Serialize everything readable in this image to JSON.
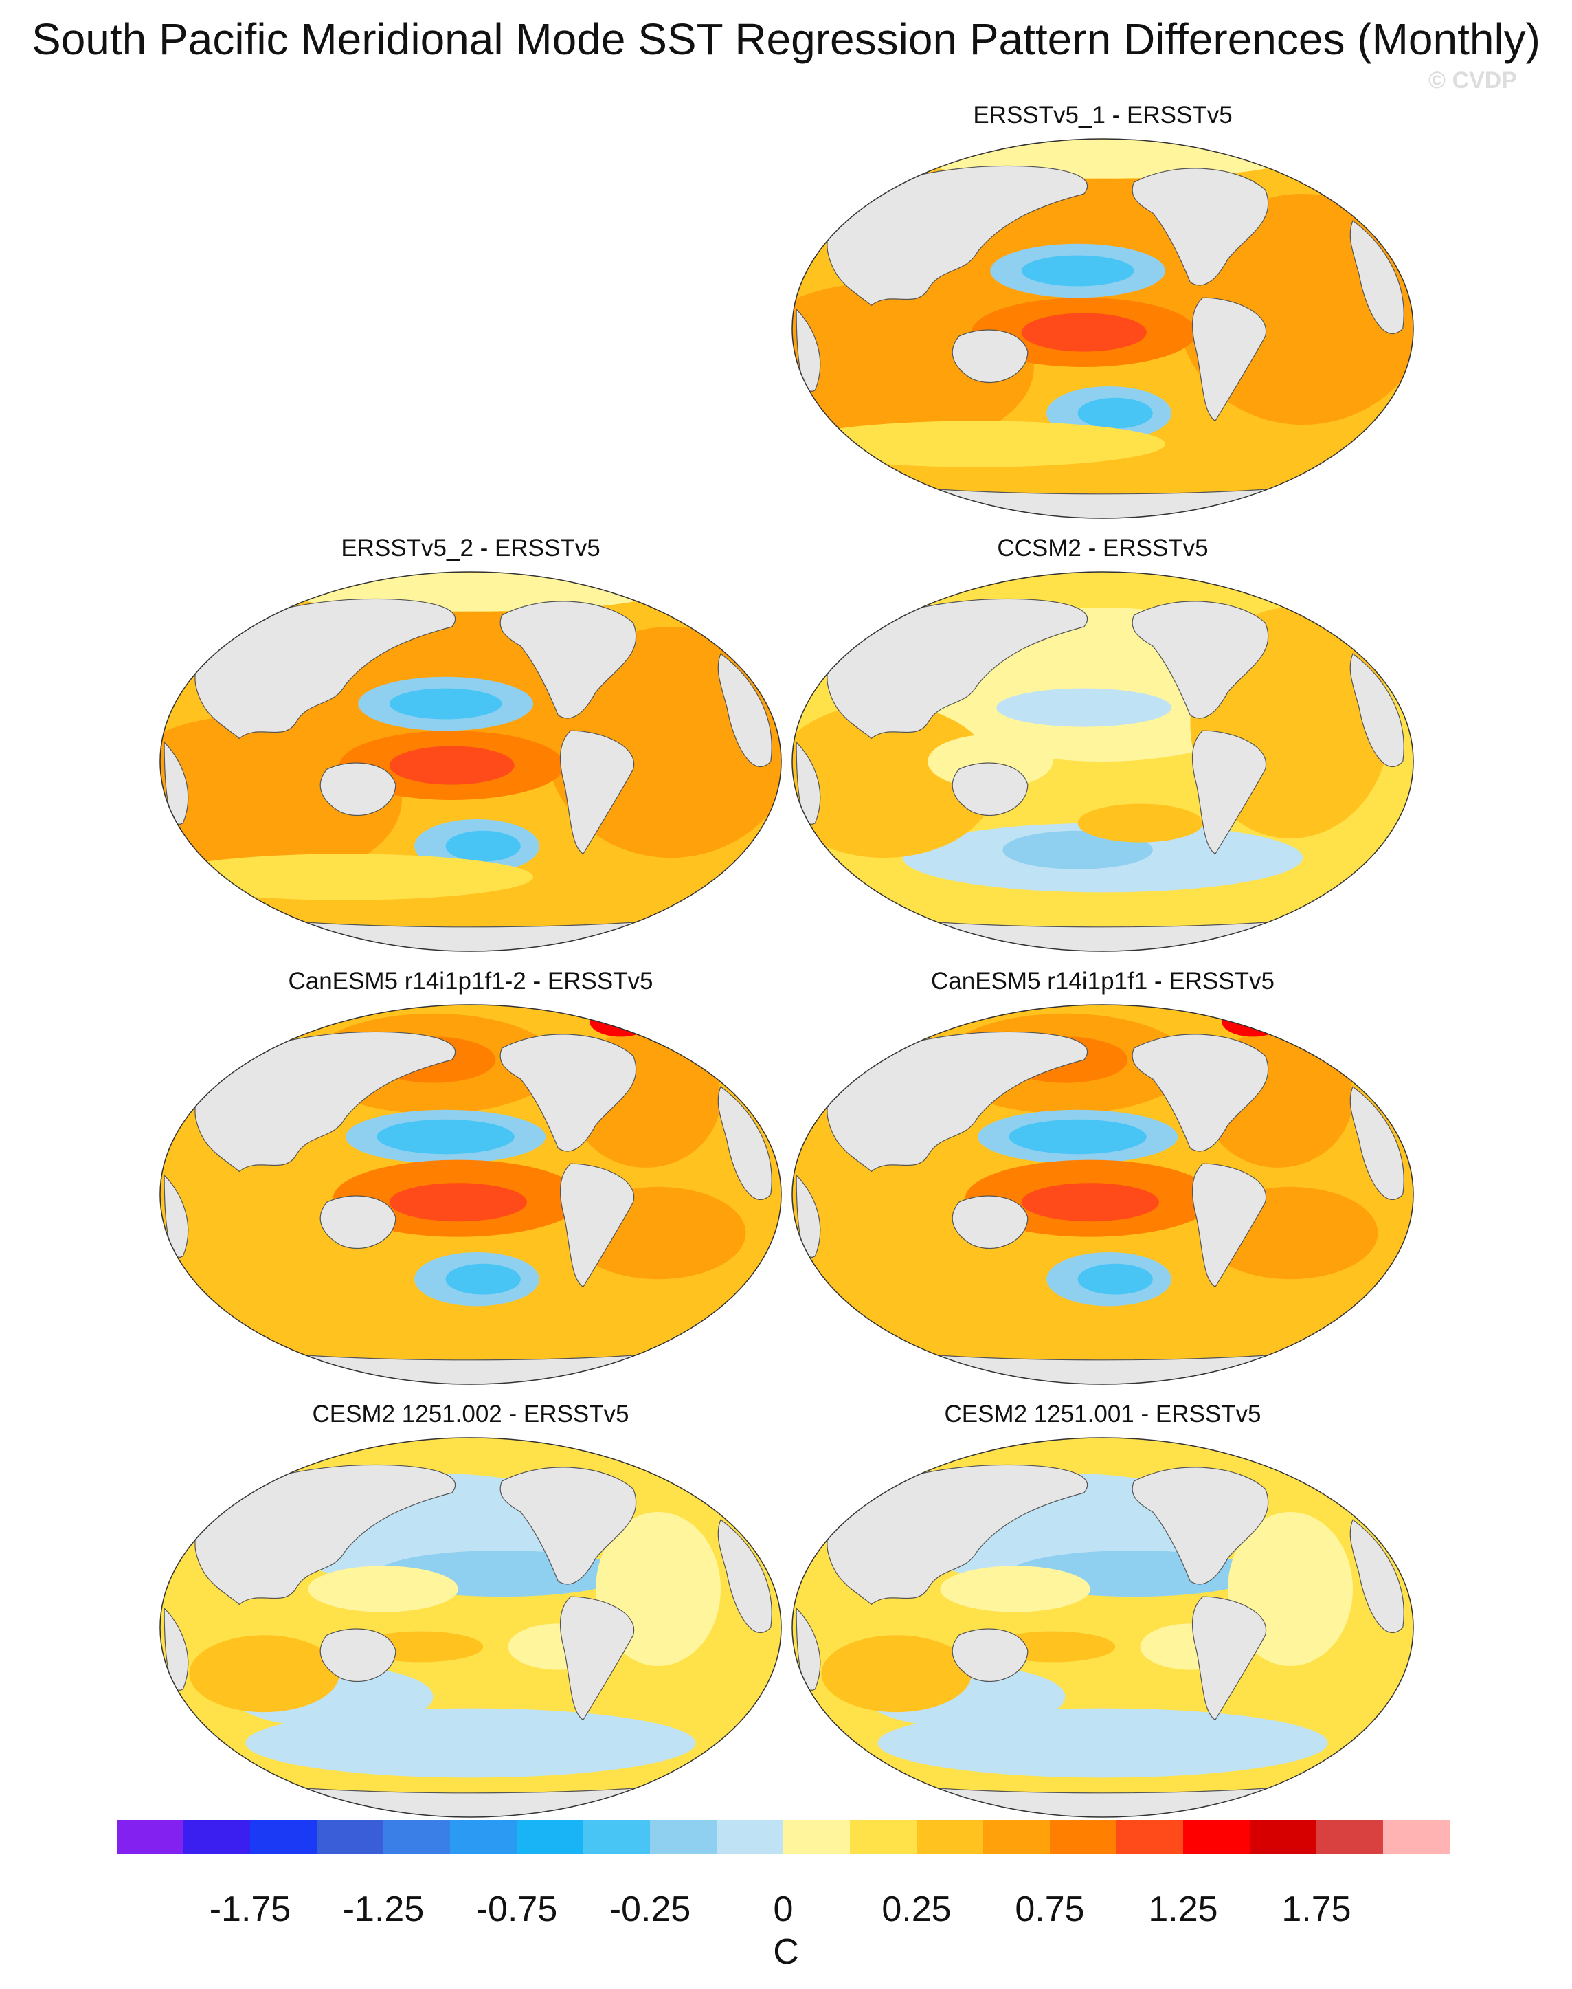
{
  "figure": {
    "title": "South Pacific Meridional Mode SST Regression Pattern Differences (Monthly)",
    "watermark": "© CVDP",
    "units": "C"
  },
  "panels": [
    {
      "id": "ersstv5_1",
      "title": "ERSSTv5_1 - ERSSTv5",
      "style": "strong-obs"
    },
    {
      "id": "ersstv5_2",
      "title": "ERSSTv5_2 - ERSSTv5",
      "style": "strong-obs"
    },
    {
      "id": "ccsm2",
      "title": "CCSM2 - ERSSTv5",
      "style": "weak"
    },
    {
      "id": "canesm5_2",
      "title": "CanESM5 r14i1p1f1-2 - ERSSTv5",
      "style": "strong-model"
    },
    {
      "id": "canesm5_1",
      "title": "CanESM5 r14i1p1f1 - ERSSTv5",
      "style": "strong-model"
    },
    {
      "id": "cesm2_002",
      "title": "CESM2 1251.002 - ERSSTv5",
      "style": "mixed"
    },
    {
      "id": "cesm2_001",
      "title": "CESM2 1251.001 - ERSSTv5",
      "style": "mixed"
    }
  ],
  "colorbar": {
    "colors": [
      "#8322f0",
      "#3b1ef0",
      "#1a3af5",
      "#3a5ed8",
      "#3a7fe8",
      "#2b9af2",
      "#19b4f5",
      "#48c4f5",
      "#8fd0f0",
      "#bfe3f5",
      "#fff59d",
      "#ffe14a",
      "#ffc21f",
      "#ffa10a",
      "#ff7f00",
      "#ff4a1a",
      "#ff0000",
      "#d60000",
      "#d94040",
      "#ffb3b3"
    ],
    "tick_labels": [
      "-1.75",
      "-1.25",
      "-0.75",
      "-0.25",
      "0",
      "0.25",
      "0.75",
      "1.25",
      "1.75"
    ]
  }
}
